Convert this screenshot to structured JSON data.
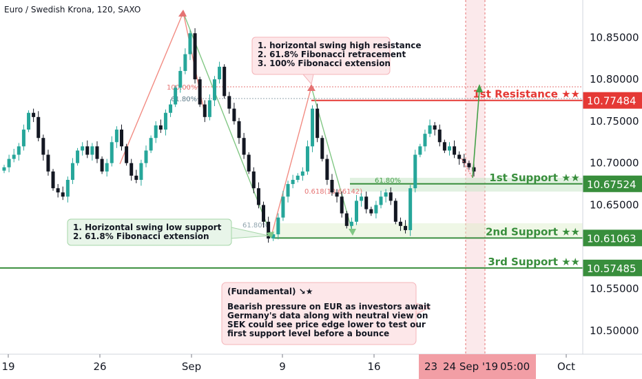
{
  "header": {
    "title": "Euro / Swedish Krona, 120, SAXO"
  },
  "colors": {
    "up": "#26a69a",
    "down": "#131722",
    "resistance": "#e53935",
    "support": "#388e3c",
    "fib_up": "#f28b82",
    "fib_down": "#81c784"
  },
  "chart_data": {
    "type": "candlestick",
    "title": "Euro / Swedish Krona, 120, SAXO",
    "x_ticks": [
      "19",
      "26",
      "Sep",
      "9",
      "16",
      "Oct"
    ],
    "y_ticks": [
      "10.85000",
      "10.80000",
      "10.75000",
      "10.70000",
      "10.65000",
      "10.55000",
      "10.50000"
    ],
    "ylim": [
      10.49,
      10.87
    ],
    "cursor_date": "24 Sep '19",
    "cursor_time": "05:00",
    "cursor_day": "23",
    "levels": [
      {
        "name": "1st Resistance ★★",
        "value": 10.77484,
        "price": "10.77484",
        "color": "#e53935"
      },
      {
        "name": "1st Support ★★",
        "value": 10.67524,
        "price": "10.67524",
        "color": "#388e3c"
      },
      {
        "name": "2nd Support ★★",
        "value": 10.61063,
        "price": "10.61063",
        "color": "#388e3c"
      },
      {
        "name": "3rd Support ★★",
        "value": 10.57485,
        "price": "10.57485",
        "color": "#388e3c"
      }
    ],
    "fib_labels": {
      "r100": "100.00%",
      "r618": "61.80%",
      "s618": "61.80%",
      "m618": "0.618(10.66142)",
      "m618b": "61.80%"
    },
    "annotations": {
      "resistance_note": [
        "1. horizontal swing high resistance",
        "2. 61.8% Fibonacci retracement",
        "3. 100% Fibonacci extension"
      ],
      "support_note": [
        "1. Horizontal swing low support",
        "2. 61.8% Fibonacci extension"
      ],
      "fundamental_note": [
        "(Fundamental) ↘★",
        "",
        "Bearish pressure on EUR as investors await",
        "Germany's data along with neutral view on",
        "SEK could see price edge lower to test our",
        "first support level before a bounce"
      ]
    },
    "series": [
      {
        "name": "EUR/SEK",
        "close": [
          10.695,
          10.705,
          10.71,
          10.72,
          10.74,
          10.76,
          10.755,
          10.73,
          10.71,
          10.69,
          10.67,
          10.665,
          10.66,
          10.68,
          10.7,
          10.715,
          10.72,
          10.71,
          10.72,
          10.705,
          10.69,
          10.7,
          10.725,
          10.74,
          10.72,
          10.7,
          10.685,
          10.68,
          10.7,
          10.715,
          10.73,
          10.745,
          10.74,
          10.76,
          10.77,
          10.79,
          10.81,
          10.83,
          10.855,
          10.8,
          10.77,
          10.755,
          10.775,
          10.8,
          10.815,
          10.78,
          10.765,
          10.75,
          10.73,
          10.71,
          10.69,
          10.67,
          10.65,
          10.63,
          10.61,
          10.615,
          10.635,
          10.66,
          10.675,
          10.68,
          10.685,
          10.69,
          10.72,
          10.765,
          10.73,
          10.705,
          10.68,
          10.665,
          10.66,
          10.64,
          10.625,
          10.63,
          10.655,
          10.66,
          10.645,
          10.64,
          10.65,
          10.66,
          10.665,
          10.655,
          10.63,
          10.625,
          10.62,
          10.67,
          10.71,
          10.72,
          10.735,
          10.745,
          10.74,
          10.725,
          10.715,
          10.72,
          10.71,
          10.705,
          10.7,
          10.695,
          10.69
        ]
      }
    ]
  }
}
